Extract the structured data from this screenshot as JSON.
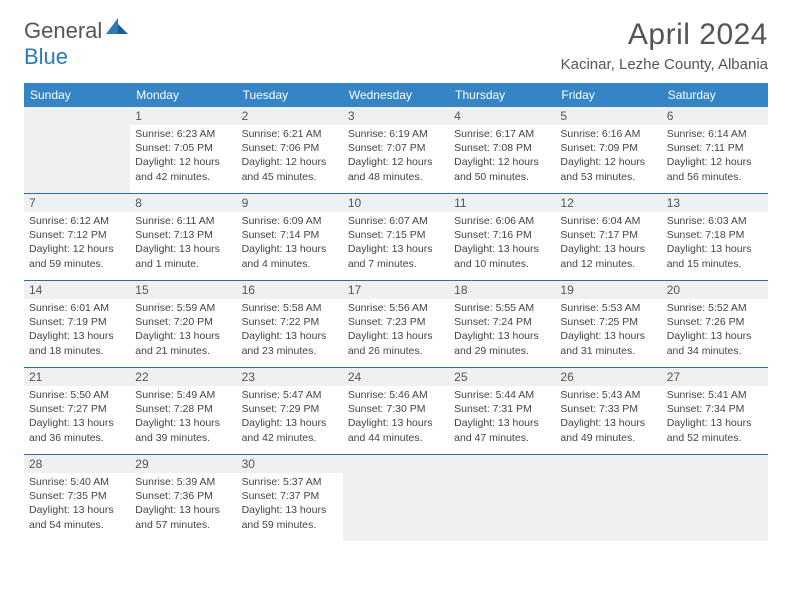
{
  "brand": {
    "name1": "General",
    "name2": "Blue"
  },
  "title": "April 2024",
  "location": "Kacinar, Lezhe County, Albania",
  "colors": {
    "header_bg": "#3585c6",
    "rule": "#2a6ea3",
    "empty_bg": "#eef0f1"
  },
  "dayNames": [
    "Sunday",
    "Monday",
    "Tuesday",
    "Wednesday",
    "Thursday",
    "Friday",
    "Saturday"
  ],
  "weeks": [
    [
      null,
      {
        "n": "1",
        "sr": "Sunrise: 6:23 AM",
        "ss": "Sunset: 7:05 PM",
        "d1": "Daylight: 12 hours",
        "d2": "and 42 minutes."
      },
      {
        "n": "2",
        "sr": "Sunrise: 6:21 AM",
        "ss": "Sunset: 7:06 PM",
        "d1": "Daylight: 12 hours",
        "d2": "and 45 minutes."
      },
      {
        "n": "3",
        "sr": "Sunrise: 6:19 AM",
        "ss": "Sunset: 7:07 PM",
        "d1": "Daylight: 12 hours",
        "d2": "and 48 minutes."
      },
      {
        "n": "4",
        "sr": "Sunrise: 6:17 AM",
        "ss": "Sunset: 7:08 PM",
        "d1": "Daylight: 12 hours",
        "d2": "and 50 minutes."
      },
      {
        "n": "5",
        "sr": "Sunrise: 6:16 AM",
        "ss": "Sunset: 7:09 PM",
        "d1": "Daylight: 12 hours",
        "d2": "and 53 minutes."
      },
      {
        "n": "6",
        "sr": "Sunrise: 6:14 AM",
        "ss": "Sunset: 7:11 PM",
        "d1": "Daylight: 12 hours",
        "d2": "and 56 minutes."
      }
    ],
    [
      {
        "n": "7",
        "sr": "Sunrise: 6:12 AM",
        "ss": "Sunset: 7:12 PM",
        "d1": "Daylight: 12 hours",
        "d2": "and 59 minutes."
      },
      {
        "n": "8",
        "sr": "Sunrise: 6:11 AM",
        "ss": "Sunset: 7:13 PM",
        "d1": "Daylight: 13 hours",
        "d2": "and 1 minute."
      },
      {
        "n": "9",
        "sr": "Sunrise: 6:09 AM",
        "ss": "Sunset: 7:14 PM",
        "d1": "Daylight: 13 hours",
        "d2": "and 4 minutes."
      },
      {
        "n": "10",
        "sr": "Sunrise: 6:07 AM",
        "ss": "Sunset: 7:15 PM",
        "d1": "Daylight: 13 hours",
        "d2": "and 7 minutes."
      },
      {
        "n": "11",
        "sr": "Sunrise: 6:06 AM",
        "ss": "Sunset: 7:16 PM",
        "d1": "Daylight: 13 hours",
        "d2": "and 10 minutes."
      },
      {
        "n": "12",
        "sr": "Sunrise: 6:04 AM",
        "ss": "Sunset: 7:17 PM",
        "d1": "Daylight: 13 hours",
        "d2": "and 12 minutes."
      },
      {
        "n": "13",
        "sr": "Sunrise: 6:03 AM",
        "ss": "Sunset: 7:18 PM",
        "d1": "Daylight: 13 hours",
        "d2": "and 15 minutes."
      }
    ],
    [
      {
        "n": "14",
        "sr": "Sunrise: 6:01 AM",
        "ss": "Sunset: 7:19 PM",
        "d1": "Daylight: 13 hours",
        "d2": "and 18 minutes."
      },
      {
        "n": "15",
        "sr": "Sunrise: 5:59 AM",
        "ss": "Sunset: 7:20 PM",
        "d1": "Daylight: 13 hours",
        "d2": "and 21 minutes."
      },
      {
        "n": "16",
        "sr": "Sunrise: 5:58 AM",
        "ss": "Sunset: 7:22 PM",
        "d1": "Daylight: 13 hours",
        "d2": "and 23 minutes."
      },
      {
        "n": "17",
        "sr": "Sunrise: 5:56 AM",
        "ss": "Sunset: 7:23 PM",
        "d1": "Daylight: 13 hours",
        "d2": "and 26 minutes."
      },
      {
        "n": "18",
        "sr": "Sunrise: 5:55 AM",
        "ss": "Sunset: 7:24 PM",
        "d1": "Daylight: 13 hours",
        "d2": "and 29 minutes."
      },
      {
        "n": "19",
        "sr": "Sunrise: 5:53 AM",
        "ss": "Sunset: 7:25 PM",
        "d1": "Daylight: 13 hours",
        "d2": "and 31 minutes."
      },
      {
        "n": "20",
        "sr": "Sunrise: 5:52 AM",
        "ss": "Sunset: 7:26 PM",
        "d1": "Daylight: 13 hours",
        "d2": "and 34 minutes."
      }
    ],
    [
      {
        "n": "21",
        "sr": "Sunrise: 5:50 AM",
        "ss": "Sunset: 7:27 PM",
        "d1": "Daylight: 13 hours",
        "d2": "and 36 minutes."
      },
      {
        "n": "22",
        "sr": "Sunrise: 5:49 AM",
        "ss": "Sunset: 7:28 PM",
        "d1": "Daylight: 13 hours",
        "d2": "and 39 minutes."
      },
      {
        "n": "23",
        "sr": "Sunrise: 5:47 AM",
        "ss": "Sunset: 7:29 PM",
        "d1": "Daylight: 13 hours",
        "d2": "and 42 minutes."
      },
      {
        "n": "24",
        "sr": "Sunrise: 5:46 AM",
        "ss": "Sunset: 7:30 PM",
        "d1": "Daylight: 13 hours",
        "d2": "and 44 minutes."
      },
      {
        "n": "25",
        "sr": "Sunrise: 5:44 AM",
        "ss": "Sunset: 7:31 PM",
        "d1": "Daylight: 13 hours",
        "d2": "and 47 minutes."
      },
      {
        "n": "26",
        "sr": "Sunrise: 5:43 AM",
        "ss": "Sunset: 7:33 PM",
        "d1": "Daylight: 13 hours",
        "d2": "and 49 minutes."
      },
      {
        "n": "27",
        "sr": "Sunrise: 5:41 AM",
        "ss": "Sunset: 7:34 PM",
        "d1": "Daylight: 13 hours",
        "d2": "and 52 minutes."
      }
    ],
    [
      {
        "n": "28",
        "sr": "Sunrise: 5:40 AM",
        "ss": "Sunset: 7:35 PM",
        "d1": "Daylight: 13 hours",
        "d2": "and 54 minutes."
      },
      {
        "n": "29",
        "sr": "Sunrise: 5:39 AM",
        "ss": "Sunset: 7:36 PM",
        "d1": "Daylight: 13 hours",
        "d2": "and 57 minutes."
      },
      {
        "n": "30",
        "sr": "Sunrise: 5:37 AM",
        "ss": "Sunset: 7:37 PM",
        "d1": "Daylight: 13 hours",
        "d2": "and 59 minutes."
      },
      null,
      null,
      null,
      null
    ]
  ]
}
